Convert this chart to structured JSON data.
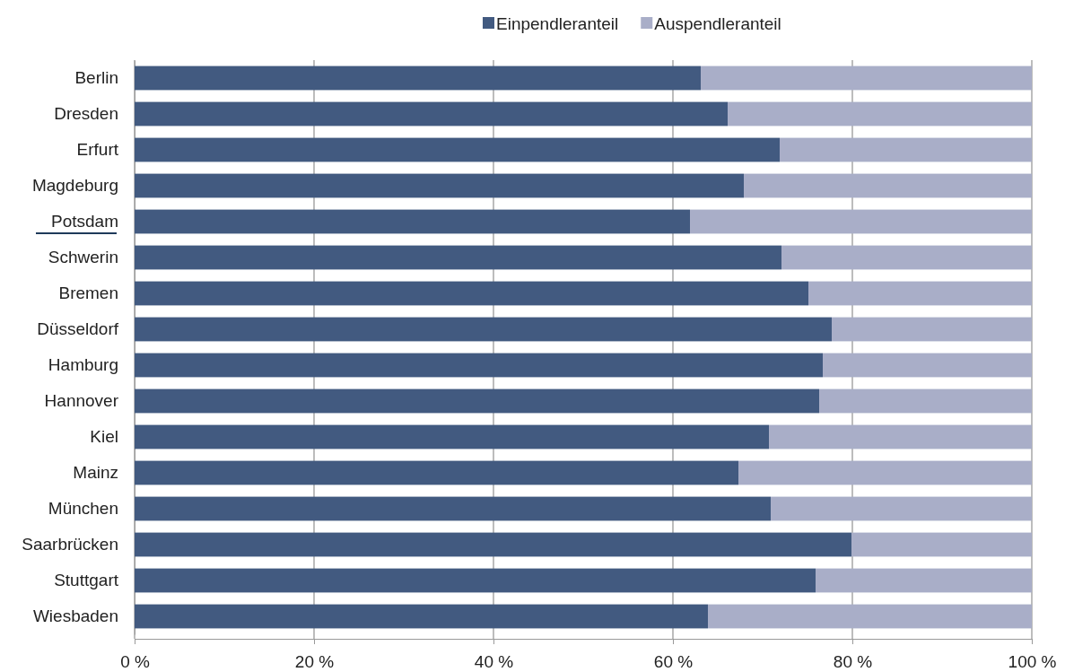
{
  "chart_data": {
    "type": "bar",
    "orientation": "horizontal",
    "stacked": true,
    "categories": [
      "Berlin",
      "Dresden",
      "Erfurt",
      "Magdeburg",
      "Potsdam",
      "Schwerin",
      "Bremen",
      "Düsseldorf",
      "Hamburg",
      "Hannover",
      "Kiel",
      "Mainz",
      "München",
      "Saarbrücken",
      "Stuttgart",
      "Wiesbaden"
    ],
    "series": [
      {
        "name": "Einpendleranteil",
        "color": "#425a80",
        "values": [
          63.1,
          66.1,
          71.9,
          67.9,
          61.9,
          72.1,
          75.1,
          77.7,
          76.7,
          76.3,
          70.7,
          67.3,
          70.9,
          79.9,
          75.9,
          63.9
        ]
      },
      {
        "name": "Auspendleranteil",
        "color": "#a9aec8",
        "values": [
          36.9,
          33.9,
          28.1,
          32.1,
          38.1,
          27.9,
          24.9,
          22.3,
          23.3,
          23.7,
          29.3,
          32.7,
          29.1,
          20.1,
          24.1,
          36.1
        ]
      }
    ],
    "xlim": [
      0,
      100
    ],
    "xticks": [
      {
        "value": 0,
        "label": "0 %"
      },
      {
        "value": 20,
        "label": "20 %"
      },
      {
        "value": 40,
        "label": "40 %"
      },
      {
        "value": 60,
        "label": "60 %"
      },
      {
        "value": 80,
        "label": "80 %"
      },
      {
        "value": 100,
        "label": "100 %"
      }
    ],
    "grid": "x",
    "legend": "top right"
  }
}
